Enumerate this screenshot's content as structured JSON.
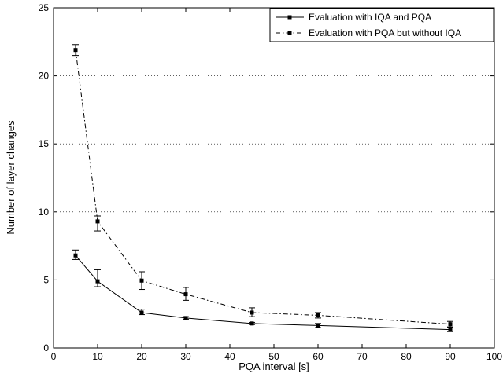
{
  "chart_data": {
    "type": "line",
    "title": "",
    "xlabel": "PQA interval [s]",
    "ylabel": "Number of layer changes",
    "xlim": [
      0,
      100
    ],
    "ylim": [
      0,
      25
    ],
    "xticks": [
      0,
      10,
      20,
      30,
      40,
      50,
      60,
      70,
      80,
      90,
      100
    ],
    "yticks": [
      0,
      5,
      10,
      15,
      20,
      25
    ],
    "grid": "horizontal dotted",
    "legend": "top-right",
    "x": [
      5,
      10,
      20,
      30,
      45,
      60,
      90
    ],
    "series": [
      {
        "name": "Evaluation with IQA and PQA",
        "line_style": "solid",
        "color": "#000000",
        "values": [
          6.8,
          4.9,
          2.6,
          2.2,
          1.8,
          1.65,
          1.35
        ],
        "error_low": [
          6.5,
          4.5,
          2.45,
          2.1,
          1.72,
          1.5,
          1.2
        ],
        "error_high": [
          7.2,
          5.75,
          2.85,
          2.3,
          1.88,
          1.8,
          1.5
        ]
      },
      {
        "name": "Evaluation with PQA but without IQA",
        "line_style": "dash-dot",
        "color": "#000000",
        "values": [
          21.9,
          9.3,
          4.95,
          3.95,
          2.6,
          2.4,
          1.75
        ],
        "error_low": [
          21.5,
          8.6,
          4.3,
          3.5,
          2.3,
          2.2,
          1.55
        ],
        "error_high": [
          22.3,
          9.7,
          5.6,
          4.45,
          2.95,
          2.6,
          1.95
        ]
      }
    ]
  }
}
